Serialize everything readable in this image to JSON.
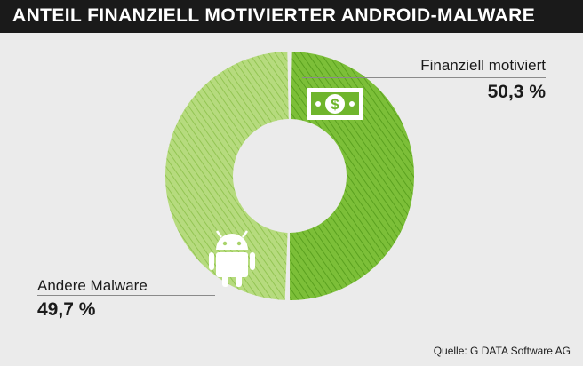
{
  "header": {
    "title": "ANTEIL FINANZIELL MOTIVIERTER ANDROID-MALWARE"
  },
  "chart_data": {
    "type": "pie",
    "variant": "donut",
    "title": "ANTEIL FINANZIELL MOTIVIERTER ANDROID-MALWARE",
    "slices": [
      {
        "label": "Finanziell motiviert",
        "value": 50.3,
        "display": "50,3 %",
        "color": "#6fb52c",
        "icon": "money-icon"
      },
      {
        "label": "Andere Malware",
        "value": 49.7,
        "display": "49,7 %",
        "color": "#a8d36a",
        "icon": "android-icon"
      }
    ]
  },
  "labels": {
    "right_name": "Finanziell motiviert",
    "right_value": "50,3 %",
    "left_name": "Andere Malware",
    "left_value": "49,7 %"
  },
  "footer": {
    "source": "Quelle: G DATA Software AG"
  },
  "colors": {
    "background": "#ebebeb",
    "title_bar": "#1a1a1a",
    "slice_dark": "#6fb52c",
    "slice_light": "#a8d36a"
  }
}
